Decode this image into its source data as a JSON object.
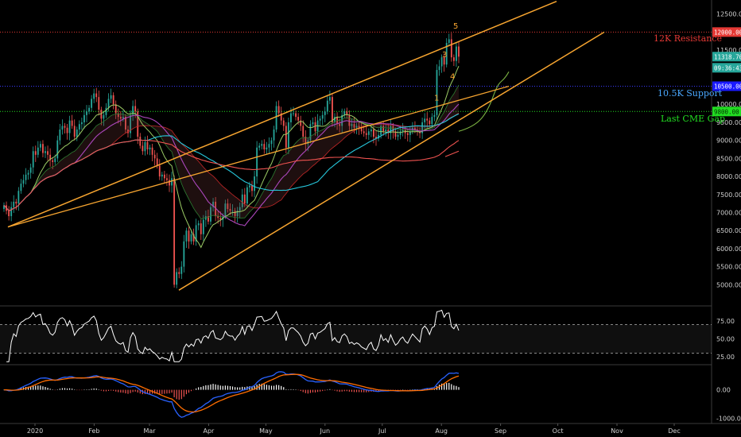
{
  "chart_data": [
    {
      "type": "candlestick",
      "asset": "",
      "y_axis_ticks": [
        5000,
        5500,
        6000,
        6500,
        7000,
        7500,
        8000,
        8500,
        9000,
        9500,
        10000,
        10500,
        11000,
        11500,
        12000,
        12500
      ],
      "y_tick_labels": [
        "5000.00",
        "5500.00",
        "6000.00",
        "6500.00",
        "7000.00",
        "7500.00",
        "8000.00",
        "8500.00",
        "9000.00",
        "9500.00",
        "10000.00",
        "10500.00",
        "11000.00",
        "11500.00",
        "12000.00",
        "12500.00"
      ],
      "ylim": [
        4700,
        12800
      ],
      "x_labels": [
        "2020",
        "Feb",
        "Mar",
        "Apr",
        "May",
        "Jun",
        "Jul",
        "Aug",
        "Sep",
        "Oct",
        "Nov",
        "Dec"
      ],
      "price_badges": [
        {
          "label": "12000.00",
          "value": 12000,
          "color": "#e53935",
          "text_color": "#ffffff"
        },
        {
          "label": "11318.70",
          "value": 11318.7,
          "color": "#26a69a",
          "text_color": "#ffffff"
        },
        {
          "label": "09:36:43",
          "value": 11060,
          "color": "#26a69a",
          "text_color": "#ffffff"
        },
        {
          "label": "10500.00",
          "value": 10500,
          "color": "#1a1aff",
          "text_color": "#ffffff"
        },
        {
          "label": "9800.00",
          "value": 9800,
          "color": "#22dd22",
          "text_color": "#003300"
        }
      ],
      "horizontal_levels": [
        {
          "value": 12000,
          "color": "#e53935",
          "label": "12K Resistance"
        },
        {
          "value": 10500,
          "color": "#3a3aff",
          "label": "10.5K Support"
        },
        {
          "value": 9800,
          "color": "#22dd22",
          "label": "Last CME Gap"
        }
      ],
      "wave_labels": [
        "1",
        "3",
        "4",
        "5"
      ],
      "candles": {
        "start_day": 0,
        "closes": [
          7200,
          7050,
          6900,
          7150,
          7300,
          7250,
          7600,
          7800,
          7900,
          8050,
          8100,
          8250,
          8700,
          8600,
          8800,
          8900,
          8650,
          8700,
          8600,
          8450,
          8400,
          8500,
          9000,
          9300,
          9400,
          9350,
          9200,
          9550,
          9400,
          9100,
          9300,
          9450,
          9500,
          9700,
          9800,
          9900,
          10150,
          10300,
          10200,
          9850,
          9600,
          9700,
          9900,
          10150,
          10250,
          10000,
          9750,
          9650,
          9600,
          9650,
          9300,
          9200,
          9700,
          9950,
          9800,
          9100,
          8850,
          8700,
          8950,
          8750,
          8800,
          8600,
          8500,
          8300,
          8000,
          8050,
          7950,
          7900,
          7750,
          7950,
          5000,
          5350,
          5300,
          5500,
          6200,
          6500,
          6200,
          6400,
          6200,
          6650,
          6700,
          6400,
          6800,
          6900,
          6750,
          7150,
          7300,
          6900,
          6850,
          6800,
          6900,
          7250,
          7100,
          7050,
          7050,
          6900,
          7050,
          7150,
          7500,
          7250,
          7700,
          7750,
          7600,
          8000,
          8800,
          8850,
          8900,
          8750,
          8800,
          8900,
          9000,
          9300,
          9950,
          9750,
          9550,
          9400,
          8800,
          9500,
          9750,
          9750,
          9650,
          9550,
          9400,
          9100,
          8900,
          9000,
          9450,
          9500,
          9250,
          9550,
          9600,
          9700,
          9800,
          10100,
          10200,
          9500,
          9650,
          9450,
          9400,
          9700,
          9800,
          9700,
          9400,
          9450,
          9350,
          9400,
          9350,
          9250,
          9200,
          9150,
          9250,
          9300,
          9100,
          9050,
          9150,
          9400,
          9250,
          9300,
          9200,
          9400,
          9250,
          9100,
          9150,
          9250,
          9300,
          9200,
          9150,
          9250,
          9350,
          9300,
          9250,
          9200,
          9500,
          9600,
          9550,
          9450,
          9650,
          9700,
          10950,
          11050,
          11300,
          11100,
          11700,
          11800,
          11300,
          11200,
          11600,
          11318.7
        ]
      },
      "indicators": {
        "ichimoku_cloud": true,
        "moving_averages": 4,
        "upper_trendline_color": "#f7a530",
        "lower_trendline_color": "#f7a530"
      }
    },
    {
      "type": "line",
      "name": "",
      "y_axis_ticks": [
        25,
        50,
        75
      ],
      "y_tick_labels": [
        "25.00",
        "50.00",
        "75.00"
      ],
      "ylim": [
        15,
        95
      ],
      "overbought": 70,
      "oversold": 30,
      "values_note": "oscillator series derived from closes"
    },
    {
      "type": "bar",
      "name": "",
      "y_axis_ticks": [
        0,
        -1000
      ],
      "y_tick_labels": [
        "0.00",
        "-1000.00"
      ],
      "ylim": [
        -1150,
        850
      ],
      "series_colors": {
        "macd": "#2962ff",
        "signal": "#ff6d00",
        "hist_up": "#ffffff",
        "hist_down": "#ef5350"
      }
    }
  ],
  "colors": {
    "background": "#000000",
    "grid": "#1a1a1a",
    "up_candle": "#26a69a",
    "down_candle": "#ef5350"
  }
}
